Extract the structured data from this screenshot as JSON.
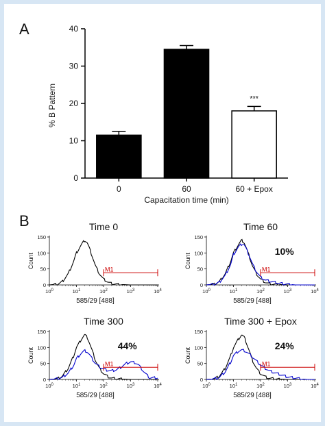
{
  "panels": {
    "a": "A",
    "b": "B"
  },
  "chart_data": [
    {
      "type": "bar",
      "title": "",
      "xlabel": "Capacitation time (min)",
      "ylabel": "% B Pattern",
      "categories": [
        "0",
        "60",
        "60 + Epox"
      ],
      "values": [
        11.5,
        34.5,
        18
      ],
      "errors": [
        1.0,
        1.0,
        1.2
      ],
      "fills": [
        "#000000",
        "#000000",
        "#ffffff"
      ],
      "annotation": {
        "text": "***",
        "category": "60 + Epox"
      },
      "ylim": [
        0,
        40
      ],
      "yticks": [
        "0",
        "10",
        "20",
        "30",
        "40"
      ]
    },
    {
      "type": "line",
      "title": "Time 0",
      "xlabel": "585/29 [488]",
      "ylabel": "Count",
      "xscale": "log",
      "xlim": [
        1,
        10000
      ],
      "ylim": [
        0,
        150
      ],
      "yticks": [
        "0",
        "50",
        "100",
        "150"
      ],
      "gate": {
        "label": "M1",
        "x_range": [
          100,
          10000
        ]
      },
      "percent_label": "",
      "series": [
        {
          "color": "#000000",
          "x": [
            1,
            2,
            3,
            5,
            8,
            10,
            15,
            20,
            25,
            30,
            40,
            50,
            70,
            100,
            150,
            200,
            300,
            500,
            1000
          ],
          "y": [
            0,
            2,
            10,
            35,
            75,
            100,
            125,
            140,
            132,
            115,
            85,
            60,
            35,
            18,
            8,
            4,
            2,
            1,
            0
          ]
        }
      ]
    },
    {
      "type": "line",
      "title": "Time 60",
      "xlabel": "585/29 [488]",
      "ylabel": "Count",
      "xscale": "log",
      "xlim": [
        1,
        10000
      ],
      "ylim": [
        0,
        150
      ],
      "yticks": [
        "0",
        "50",
        "100",
        "150"
      ],
      "gate": {
        "label": "M1",
        "x_range": [
          100,
          10000
        ]
      },
      "percent_label": "10%",
      "series": [
        {
          "color": "#000000",
          "x": [
            1,
            2,
            3,
            5,
            8,
            10,
            15,
            20,
            25,
            30,
            40,
            50,
            70,
            100,
            150,
            200,
            300,
            500,
            1000
          ],
          "y": [
            0,
            2,
            10,
            35,
            75,
            100,
            125,
            140,
            132,
            115,
            85,
            60,
            35,
            18,
            8,
            4,
            2,
            1,
            0
          ]
        },
        {
          "color": "#0000cc",
          "x": [
            1,
            2,
            3,
            5,
            8,
            10,
            15,
            20,
            25,
            30,
            40,
            50,
            70,
            100,
            150,
            200,
            300,
            500,
            1000,
            2000
          ],
          "y": [
            0,
            2,
            8,
            30,
            65,
            95,
            118,
            128,
            126,
            112,
            88,
            66,
            42,
            24,
            15,
            12,
            9,
            5,
            2,
            0
          ]
        }
      ]
    },
    {
      "type": "line",
      "title": "Time 300",
      "xlabel": "585/29 [488]",
      "ylabel": "Count",
      "xscale": "log",
      "xlim": [
        1,
        10000
      ],
      "ylim": [
        0,
        150
      ],
      "yticks": [
        "0",
        "50",
        "100",
        "150"
      ],
      "gate": {
        "label": "M1",
        "x_range": [
          100,
          10000
        ]
      },
      "percent_label": "44%",
      "series": [
        {
          "color": "#000000",
          "x": [
            1,
            2,
            3,
            5,
            8,
            10,
            15,
            20,
            25,
            30,
            40,
            50,
            70,
            100,
            150,
            200,
            300,
            500,
            1000
          ],
          "y": [
            0,
            2,
            10,
            35,
            75,
            100,
            125,
            140,
            132,
            115,
            85,
            60,
            35,
            18,
            8,
            4,
            2,
            1,
            0
          ]
        },
        {
          "color": "#0000cc",
          "x": [
            1,
            2,
            3,
            5,
            8,
            10,
            15,
            20,
            25,
            30,
            40,
            50,
            70,
            100,
            150,
            200,
            300,
            400,
            500,
            700,
            1000,
            1500,
            2000,
            3000,
            5000
          ],
          "y": [
            0,
            2,
            6,
            20,
            45,
            65,
            82,
            90,
            86,
            78,
            62,
            50,
            40,
            32,
            28,
            27,
            30,
            36,
            42,
            50,
            55,
            52,
            45,
            25,
            5
          ]
        }
      ]
    },
    {
      "type": "line",
      "title": "Time 300 + Epox",
      "xlabel": "585/29 [488]",
      "ylabel": "Count",
      "xscale": "log",
      "xlim": [
        1,
        10000
      ],
      "ylim": [
        0,
        150
      ],
      "yticks": [
        "0",
        "50",
        "100",
        "150"
      ],
      "gate": {
        "label": "M1",
        "x_range": [
          100,
          10000
        ]
      },
      "percent_label": "24%",
      "series": [
        {
          "color": "#000000",
          "x": [
            1,
            2,
            3,
            5,
            8,
            10,
            15,
            20,
            25,
            30,
            40,
            50,
            70,
            100,
            150,
            200,
            300,
            500,
            1000
          ],
          "y": [
            0,
            2,
            10,
            35,
            75,
            100,
            125,
            140,
            132,
            115,
            85,
            60,
            35,
            18,
            8,
            4,
            2,
            1,
            0
          ]
        },
        {
          "color": "#0000cc",
          "x": [
            1,
            2,
            3,
            5,
            8,
            10,
            15,
            20,
            25,
            30,
            40,
            50,
            70,
            100,
            150,
            200,
            300,
            500,
            700,
            1000,
            2000,
            3000,
            5000
          ],
          "y": [
            0,
            2,
            6,
            24,
            55,
            75,
            88,
            92,
            90,
            86,
            78,
            70,
            58,
            45,
            35,
            28,
            22,
            16,
            12,
            8,
            4,
            2,
            0
          ]
        }
      ]
    }
  ]
}
